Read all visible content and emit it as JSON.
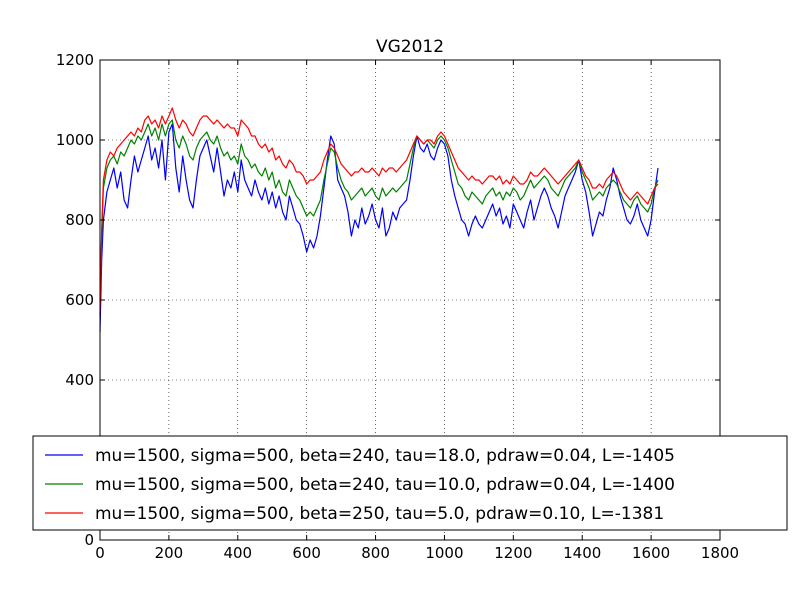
{
  "chart_data": {
    "type": "line",
    "title": "VG2012",
    "xlabel": "",
    "ylabel": "",
    "xlim": [
      0,
      1800
    ],
    "ylim": [
      0,
      1200
    ],
    "xticks": [
      0,
      200,
      400,
      600,
      800,
      1000,
      1200,
      1400,
      1600,
      1800
    ],
    "yticks": [
      0,
      200,
      400,
      600,
      800,
      1000,
      1200
    ],
    "xtick_labels": [
      "0",
      "200",
      "400",
      "600",
      "800",
      "1000",
      "1200",
      "1400",
      "1600",
      "1800"
    ],
    "ytick_labels": [
      "0",
      "200",
      "400",
      "600",
      "800",
      "1000",
      "1200"
    ],
    "grid": true,
    "legend_position": "lower-center",
    "series": [
      {
        "name": "mu=1500, sigma=500, beta=240, tau=18.0, pdraw=0.04, L=-1405",
        "color": "#0000ff",
        "x": [
          0,
          5,
          10,
          20,
          30,
          40,
          50,
          60,
          70,
          80,
          90,
          100,
          110,
          120,
          130,
          140,
          150,
          160,
          170,
          180,
          190,
          200,
          210,
          220,
          230,
          240,
          250,
          260,
          270,
          280,
          290,
          300,
          310,
          320,
          330,
          340,
          350,
          360,
          370,
          380,
          390,
          400,
          410,
          420,
          430,
          440,
          450,
          460,
          470,
          480,
          490,
          500,
          510,
          520,
          530,
          540,
          550,
          560,
          570,
          580,
          590,
          600,
          610,
          620,
          630,
          640,
          650,
          660,
          670,
          680,
          690,
          700,
          710,
          720,
          730,
          740,
          750,
          760,
          770,
          780,
          790,
          800,
          810,
          820,
          830,
          840,
          850,
          860,
          870,
          880,
          890,
          900,
          910,
          920,
          930,
          940,
          950,
          960,
          970,
          980,
          990,
          1000,
          1010,
          1020,
          1030,
          1040,
          1050,
          1060,
          1070,
          1080,
          1090,
          1100,
          1110,
          1120,
          1130,
          1140,
          1150,
          1160,
          1170,
          1180,
          1190,
          1200,
          1210,
          1220,
          1230,
          1240,
          1250,
          1260,
          1270,
          1280,
          1290,
          1300,
          1310,
          1320,
          1330,
          1340,
          1350,
          1360,
          1370,
          1380,
          1390,
          1400,
          1410,
          1420,
          1430,
          1440,
          1450,
          1460,
          1470,
          1480,
          1490,
          1500,
          1510,
          1520,
          1530,
          1540,
          1550,
          1560,
          1570,
          1580,
          1590,
          1600,
          1610,
          1620
        ],
        "y": [
          520,
          700,
          800,
          870,
          900,
          930,
          880,
          920,
          850,
          830,
          900,
          960,
          920,
          950,
          980,
          1010,
          950,
          980,
          930,
          1000,
          900,
          1020,
          1040,
          930,
          870,
          960,
          900,
          850,
          830,
          900,
          960,
          980,
          1000,
          960,
          920,
          980,
          920,
          860,
          900,
          880,
          920,
          870,
          950,
          900,
          880,
          860,
          900,
          870,
          850,
          880,
          840,
          870,
          830,
          860,
          820,
          800,
          860,
          830,
          800,
          790,
          760,
          720,
          750,
          730,
          760,
          810,
          880,
          950,
          1010,
          990,
          900,
          880,
          860,
          820,
          760,
          800,
          780,
          830,
          790,
          810,
          840,
          800,
          780,
          830,
          760,
          780,
          820,
          800,
          830,
          840,
          850,
          900,
          960,
          1010,
          980,
          970,
          990,
          960,
          950,
          980,
          1000,
          990,
          960,
          900,
          860,
          830,
          800,
          790,
          760,
          790,
          810,
          790,
          780,
          800,
          820,
          840,
          810,
          830,
          790,
          810,
          780,
          840,
          820,
          800,
          780,
          820,
          850,
          800,
          830,
          860,
          880,
          860,
          830,
          810,
          780,
          820,
          860,
          880,
          900,
          920,
          950,
          900,
          870,
          820,
          760,
          790,
          820,
          810,
          850,
          880,
          930,
          900,
          860,
          830,
          800,
          790,
          810,
          840,
          800,
          780,
          760,
          800,
          870,
          930
        ]
      },
      {
        "name": "mu=1500, sigma=500, beta=240, tau=10.0, pdraw=0.04, L=-1400",
        "color": "#008000",
        "x": [
          0,
          5,
          10,
          20,
          30,
          40,
          50,
          60,
          70,
          80,
          90,
          100,
          110,
          120,
          130,
          140,
          150,
          160,
          170,
          180,
          190,
          200,
          210,
          220,
          230,
          240,
          250,
          260,
          270,
          280,
          290,
          300,
          310,
          320,
          330,
          340,
          350,
          360,
          370,
          380,
          390,
          400,
          410,
          420,
          430,
          440,
          450,
          460,
          470,
          480,
          490,
          500,
          510,
          520,
          530,
          540,
          550,
          560,
          570,
          580,
          590,
          600,
          610,
          620,
          630,
          640,
          650,
          660,
          670,
          680,
          690,
          700,
          710,
          720,
          730,
          740,
          750,
          760,
          770,
          780,
          790,
          800,
          810,
          820,
          830,
          840,
          850,
          860,
          870,
          880,
          890,
          900,
          910,
          920,
          930,
          940,
          950,
          960,
          970,
          980,
          990,
          1000,
          1010,
          1020,
          1030,
          1040,
          1050,
          1060,
          1070,
          1080,
          1090,
          1100,
          1110,
          1120,
          1130,
          1140,
          1150,
          1160,
          1170,
          1180,
          1190,
          1200,
          1210,
          1220,
          1230,
          1240,
          1250,
          1260,
          1270,
          1280,
          1290,
          1300,
          1310,
          1320,
          1330,
          1340,
          1350,
          1360,
          1370,
          1380,
          1390,
          1400,
          1410,
          1420,
          1430,
          1440,
          1450,
          1460,
          1470,
          1480,
          1490,
          1500,
          1510,
          1520,
          1530,
          1540,
          1550,
          1560,
          1570,
          1580,
          1590,
          1600,
          1610,
          1620
        ],
        "y": [
          600,
          760,
          880,
          930,
          950,
          960,
          940,
          970,
          960,
          980,
          1000,
          990,
          1010,
          1000,
          1020,
          1040,
          1010,
          1030,
          1000,
          1040,
          1010,
          1040,
          1050,
          1000,
          980,
          1010,
          990,
          960,
          950,
          980,
          1000,
          1010,
          1020,
          1000,
          990,
          1010,
          980,
          960,
          970,
          950,
          960,
          940,
          990,
          960,
          950,
          930,
          940,
          920,
          910,
          930,
          900,
          920,
          880,
          900,
          870,
          860,
          900,
          880,
          860,
          850,
          830,
          810,
          820,
          810,
          830,
          850,
          900,
          940,
          980,
          970,
          930,
          900,
          880,
          870,
          850,
          860,
          870,
          880,
          860,
          870,
          880,
          860,
          850,
          880,
          860,
          870,
          880,
          870,
          880,
          890,
          900,
          940,
          980,
          1010,
          1000,
          990,
          1000,
          990,
          980,
          1000,
          1010,
          1000,
          980,
          950,
          920,
          890,
          880,
          860,
          850,
          870,
          860,
          850,
          840,
          860,
          870,
          880,
          860,
          870,
          850,
          870,
          860,
          880,
          870,
          850,
          860,
          880,
          900,
          880,
          890,
          900,
          910,
          900,
          880,
          870,
          860,
          880,
          900,
          910,
          920,
          930,
          950,
          920,
          900,
          880,
          850,
          860,
          870,
          860,
          880,
          890,
          900,
          890,
          870,
          850,
          840,
          830,
          850,
          860,
          840,
          830,
          820,
          840,
          880,
          900
        ]
      },
      {
        "name": "mu=1500, sigma=500, beta=250, tau=5.0, pdraw=0.10, L=-1381",
        "color": "#ff0000",
        "x": [
          0,
          5,
          10,
          20,
          30,
          40,
          50,
          60,
          70,
          80,
          90,
          100,
          110,
          120,
          130,
          140,
          150,
          160,
          170,
          180,
          190,
          200,
          210,
          220,
          230,
          240,
          250,
          260,
          270,
          280,
          290,
          300,
          310,
          320,
          330,
          340,
          350,
          360,
          370,
          380,
          390,
          400,
          410,
          420,
          430,
          440,
          450,
          460,
          470,
          480,
          490,
          500,
          510,
          520,
          530,
          540,
          550,
          560,
          570,
          580,
          590,
          600,
          610,
          620,
          630,
          640,
          650,
          660,
          670,
          680,
          690,
          700,
          710,
          720,
          730,
          740,
          750,
          760,
          770,
          780,
          790,
          800,
          810,
          820,
          830,
          840,
          850,
          860,
          870,
          880,
          890,
          900,
          910,
          920,
          930,
          940,
          950,
          960,
          970,
          980,
          990,
          1000,
          1010,
          1020,
          1030,
          1040,
          1050,
          1060,
          1070,
          1080,
          1090,
          1100,
          1110,
          1120,
          1130,
          1140,
          1150,
          1160,
          1170,
          1180,
          1190,
          1200,
          1210,
          1220,
          1230,
          1240,
          1250,
          1260,
          1270,
          1280,
          1290,
          1300,
          1310,
          1320,
          1330,
          1340,
          1350,
          1360,
          1370,
          1380,
          1390,
          1400,
          1410,
          1420,
          1430,
          1440,
          1450,
          1460,
          1470,
          1480,
          1490,
          1500,
          1510,
          1520,
          1530,
          1540,
          1550,
          1560,
          1570,
          1580,
          1590,
          1600,
          1610,
          1620
        ],
        "y": [
          560,
          780,
          900,
          950,
          970,
          960,
          980,
          990,
          1000,
          1010,
          1020,
          1010,
          1030,
          1020,
          1050,
          1060,
          1040,
          1050,
          1030,
          1060,
          1040,
          1060,
          1080,
          1050,
          1030,
          1050,
          1040,
          1020,
          1010,
          1030,
          1050,
          1060,
          1060,
          1050,
          1040,
          1050,
          1040,
          1030,
          1040,
          1030,
          1030,
          1010,
          1050,
          1040,
          1030,
          1010,
          1010,
          990,
          980,
          990,
          970,
          980,
          950,
          960,
          940,
          930,
          950,
          940,
          920,
          920,
          910,
          890,
          900,
          900,
          910,
          920,
          950,
          970,
          990,
          980,
          960,
          940,
          930,
          920,
          910,
          920,
          920,
          930,
          920,
          920,
          930,
          920,
          910,
          930,
          920,
          930,
          930,
          920,
          930,
          940,
          950,
          970,
          990,
          1010,
          1000,
          990,
          1000,
          1000,
          990,
          1010,
          1020,
          1010,
          990,
          970,
          950,
          930,
          920,
          910,
          900,
          910,
          900,
          900,
          890,
          900,
          910,
          910,
          900,
          910,
          890,
          900,
          890,
          910,
          900,
          890,
          890,
          900,
          920,
          910,
          910,
          920,
          930,
          920,
          910,
          900,
          890,
          900,
          910,
          920,
          930,
          940,
          950,
          930,
          910,
          900,
          880,
          880,
          890,
          880,
          900,
          910,
          920,
          910,
          890,
          870,
          860,
          850,
          860,
          870,
          860,
          850,
          840,
          860,
          880,
          890
        ]
      }
    ]
  }
}
